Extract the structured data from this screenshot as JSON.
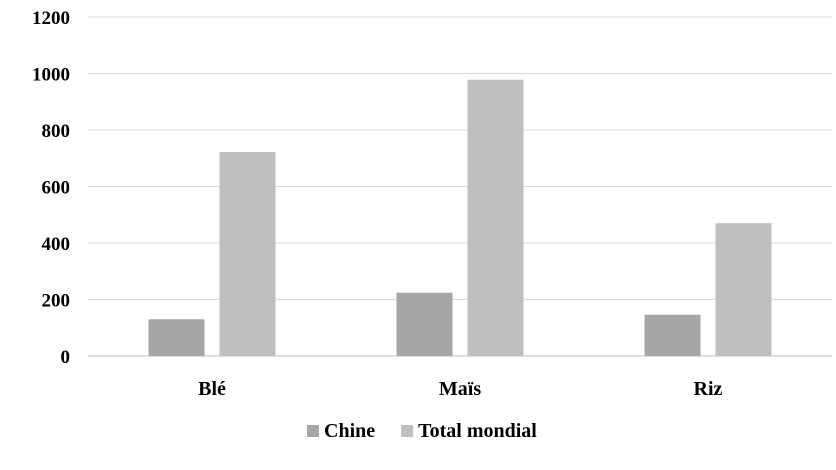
{
  "chart_data": {
    "type": "bar",
    "categories": [
      "Blé",
      "Maïs",
      "Riz"
    ],
    "series": [
      {
        "name": "Chine",
        "values": [
          130,
          224,
          146
        ],
        "color": "#a6a6a6"
      },
      {
        "name": "Total mondial",
        "values": [
          722,
          978,
          470
        ],
        "color": "#bfbfbf"
      }
    ],
    "ylim": [
      0,
      1200
    ],
    "yticks": [
      0,
      200,
      400,
      600,
      800,
      1000,
      1200
    ],
    "ytick_labels": [
      "0",
      "200",
      "400",
      "600",
      "800",
      "1000",
      "1200"
    ],
    "grid": true,
    "legend_position": "bottom",
    "title": "",
    "xlabel": "",
    "ylabel": ""
  }
}
